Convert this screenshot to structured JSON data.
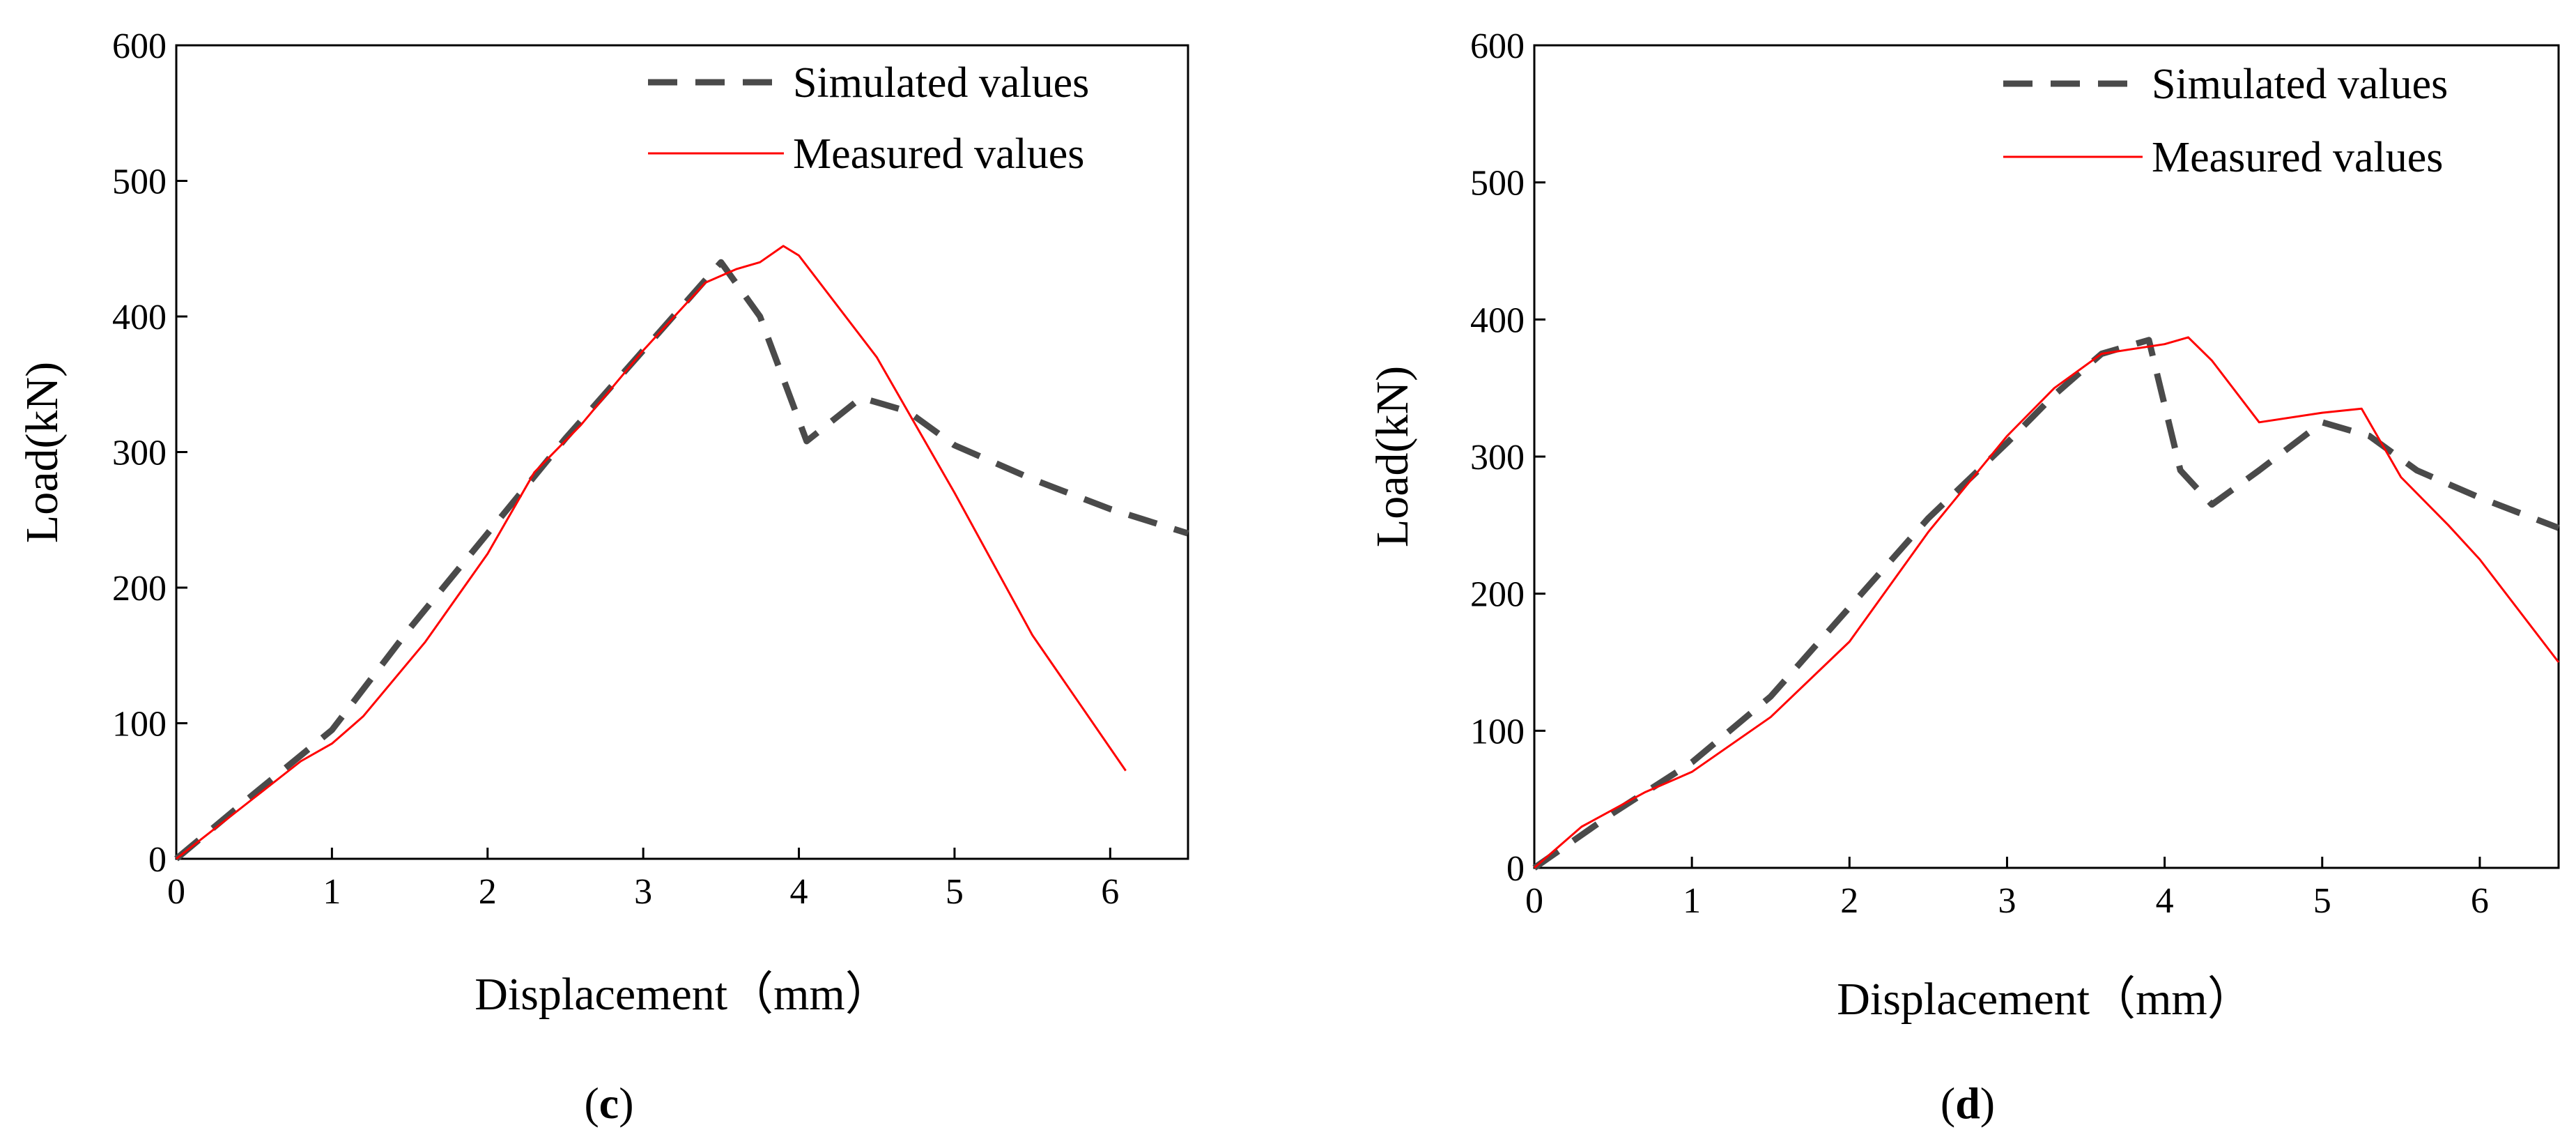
{
  "chart_data": [
    {
      "type": "line",
      "panel": "c",
      "xlabel": "Displacement（mm）",
      "ylabel": "Load(kN)",
      "xlim": [
        0,
        6.5
      ],
      "ylim": [
        0,
        600
      ],
      "xticks": [
        0,
        1,
        2,
        3,
        4,
        5,
        6
      ],
      "yticks": [
        0,
        100,
        200,
        300,
        400,
        500,
        600
      ],
      "legend_position": "top-right",
      "series": [
        {
          "name": "Simulated values",
          "style": "dashed",
          "color": "#4a4a4a",
          "x": [
            0,
            0.5,
            1.0,
            1.5,
            2.0,
            2.5,
            3.0,
            3.5,
            3.75,
            4.05,
            4.4,
            4.7,
            5.0,
            5.5,
            6.0,
            6.5
          ],
          "y": [
            0,
            48,
            95,
            170,
            240,
            310,
            375,
            440,
            400,
            308,
            340,
            330,
            305,
            280,
            258,
            240
          ]
        },
        {
          "name": "Measured values",
          "style": "solid",
          "color": "#ff0000",
          "x": [
            0,
            0.5,
            0.8,
            1.0,
            1.2,
            1.6,
            2.0,
            2.3,
            2.6,
            3.0,
            3.4,
            3.6,
            3.75,
            3.9,
            4.0,
            4.5,
            5.0,
            5.5,
            5.8,
            6.1
          ],
          "y": [
            0,
            45,
            72,
            85,
            105,
            160,
            225,
            285,
            320,
            375,
            425,
            435,
            440,
            452,
            445,
            370,
            270,
            165,
            115,
            65
          ]
        }
      ]
    },
    {
      "type": "line",
      "panel": "d",
      "xlabel": "Displacement（mm）",
      "ylabel": "Load(kN)",
      "xlim": [
        0,
        6.5
      ],
      "ylim": [
        0,
        600
      ],
      "xticks": [
        0,
        1,
        2,
        3,
        4,
        5,
        6
      ],
      "yticks": [
        0,
        100,
        200,
        300,
        400,
        500,
        600
      ],
      "legend_position": "top-right",
      "series": [
        {
          "name": "Simulated values",
          "style": "dashed",
          "color": "#4a4a4a",
          "x": [
            0,
            0.5,
            1.0,
            1.5,
            2.0,
            2.5,
            3.0,
            3.3,
            3.6,
            3.9,
            4.1,
            4.3,
            4.6,
            5.0,
            5.3,
            5.6,
            6.0,
            6.5
          ],
          "y": [
            0,
            40,
            77,
            125,
            190,
            255,
            310,
            345,
            375,
            385,
            290,
            265,
            290,
            325,
            315,
            290,
            270,
            248
          ]
        },
        {
          "name": "Measured values",
          "style": "solid",
          "color": "#ff0000",
          "x": [
            0,
            0.3,
            0.7,
            1.0,
            1.5,
            2.0,
            2.5,
            3.0,
            3.3,
            3.6,
            4.0,
            4.15,
            4.3,
            4.6,
            5.0,
            5.25,
            5.5,
            5.8,
            6.0,
            6.5
          ],
          "y": [
            0,
            30,
            55,
            70,
            110,
            165,
            245,
            315,
            350,
            375,
            382,
            387,
            370,
            325,
            332,
            335,
            285,
            250,
            225,
            150
          ]
        }
      ]
    }
  ],
  "captions": [
    {
      "open": "(",
      "letter": "c",
      "close": ")"
    },
    {
      "open": "(",
      "letter": "d",
      "close": ")"
    }
  ]
}
